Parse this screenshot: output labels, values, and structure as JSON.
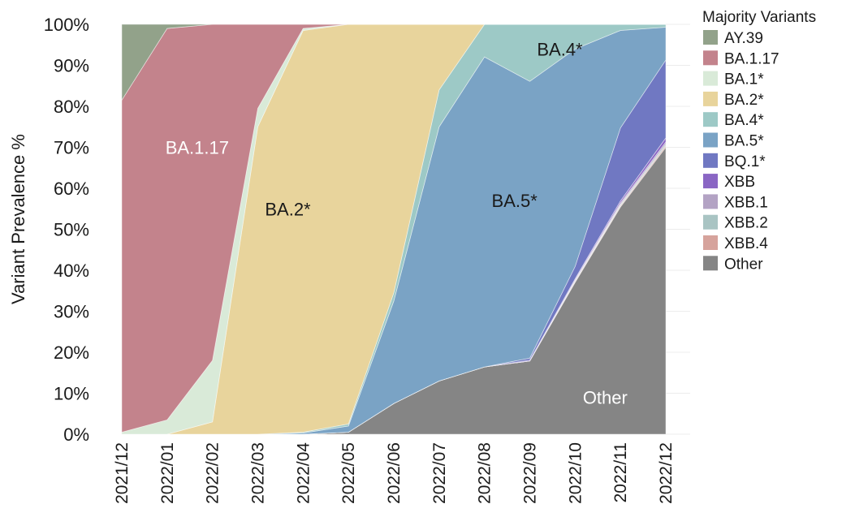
{
  "chart_data": {
    "type": "area",
    "stacked": true,
    "normalized": true,
    "ylabel": "Variant Prevalence %",
    "xlabel": "",
    "ylim": [
      0,
      100
    ],
    "y_ticks": [
      {
        "value": 100,
        "label": "100%"
      },
      {
        "value": 90,
        "label": "90%"
      },
      {
        "value": 80,
        "label": "80%"
      },
      {
        "value": 70,
        "label": "70%"
      },
      {
        "value": 60,
        "label": "60%"
      },
      {
        "value": 50,
        "label": "50%"
      },
      {
        "value": 40,
        "label": "40%"
      },
      {
        "value": 30,
        "label": "30%"
      },
      {
        "value": 20,
        "label": "20%"
      },
      {
        "value": 10,
        "label": "10%"
      },
      {
        "value": 0,
        "label": "0%"
      }
    ],
    "grid": true,
    "legend_title": "Majority Variants",
    "legend_position": "right",
    "categories": [
      "2021/12",
      "2022/01",
      "2022/02",
      "2022/03",
      "2022/04",
      "2022/05",
      "2022/06",
      "2022/07",
      "2022/08",
      "2022/09",
      "2022/10",
      "2022/11",
      "2022/12"
    ],
    "series": [
      {
        "name": "Other",
        "color": "#858585",
        "values": [
          0,
          0,
          0,
          0,
          0,
          0.5,
          7.5,
          13,
          16.5,
          18,
          37,
          56,
          70
        ]
      },
      {
        "name": "XBB.4",
        "color": "#d6a39c",
        "values": [
          0,
          0,
          0,
          0,
          0,
          0,
          0,
          0,
          0,
          0,
          0.2,
          0.3,
          0.4
        ]
      },
      {
        "name": "XBB.2",
        "color": "#a9c4c3",
        "values": [
          0,
          0,
          0,
          0,
          0,
          0,
          0,
          0,
          0,
          0,
          0.2,
          0.3,
          0.4
        ]
      },
      {
        "name": "XBB.1",
        "color": "#b3a3c4",
        "values": [
          0,
          0,
          0,
          0,
          0,
          0,
          0,
          0,
          0,
          0,
          0.2,
          0.4,
          0.5
        ]
      },
      {
        "name": "XBB",
        "color": "#8a66c4",
        "values": [
          0,
          0,
          0,
          0,
          0,
          0,
          0,
          0,
          0,
          0.2,
          0.3,
          0.5,
          1
        ]
      },
      {
        "name": "BQ.1*",
        "color": "#7078c2",
        "values": [
          0,
          0,
          0,
          0,
          0,
          0,
          0,
          0,
          0,
          0.5,
          3,
          18,
          19
        ]
      },
      {
        "name": "BA.5*",
        "color": "#7aa3c5",
        "values": [
          0,
          0,
          0,
          0,
          0.3,
          1.5,
          25,
          62,
          76,
          68,
          53,
          24,
          8
        ]
      },
      {
        "name": "BA.4*",
        "color": "#9dc9c6",
        "values": [
          0,
          0,
          0,
          0,
          0.2,
          0.5,
          2,
          9,
          8,
          14,
          6,
          1.5,
          0.7
        ]
      },
      {
        "name": "BA.2*",
        "color": "#e8d49c",
        "values": [
          0,
          0,
          3,
          75,
          98,
          97.5,
          65.5,
          16,
          0,
          0,
          0,
          0,
          0
        ]
      },
      {
        "name": "BA.1*",
        "color": "#d9ead8",
        "values": [
          0.5,
          3.5,
          15,
          4.5,
          0.5,
          0,
          0,
          0,
          0,
          0,
          0,
          0,
          0
        ]
      },
      {
        "name": "BA.1.17",
        "color": "#c3838c",
        "values": [
          81,
          95.5,
          82,
          20.5,
          1,
          0,
          0,
          0,
          0,
          0,
          0,
          0,
          0
        ]
      },
      {
        "name": "AY.39",
        "color": "#92a28a",
        "values": [
          18.5,
          1,
          0,
          0,
          0,
          0,
          0,
          0,
          0,
          0,
          0,
          0,
          0
        ]
      }
    ],
    "legend_entries": [
      {
        "name": "AY.39",
        "color": "#92a28a"
      },
      {
        "name": "BA.1.17",
        "color": "#c3838c"
      },
      {
        "name": "BA.1*",
        "color": "#d9ead8"
      },
      {
        "name": "BA.2*",
        "color": "#e8d49c"
      },
      {
        "name": "BA.4*",
        "color": "#9dc9c6"
      },
      {
        "name": "BA.5*",
        "color": "#7aa3c5"
      },
      {
        "name": "BQ.1*",
        "color": "#7078c2"
      },
      {
        "name": "XBB",
        "color": "#8a66c4"
      },
      {
        "name": "XBB.1",
        "color": "#b3a3c4"
      },
      {
        "name": "XBB.2",
        "color": "#a9c4c3"
      },
      {
        "name": "XBB.4",
        "color": "#d6a39c"
      },
      {
        "name": "Other",
        "color": "#858585"
      }
    ],
    "annotations": [
      {
        "text": "BA.1.17",
        "x": "2022/01",
        "y": 70,
        "color": "#ffffff"
      },
      {
        "text": "BA.2*",
        "x": "2022/03",
        "y": 55,
        "color": "#1a1a1a"
      },
      {
        "text": "BA.5*",
        "x": "2022/08",
        "y": 57,
        "color": "#1a1a1a"
      },
      {
        "text": "BA.4*",
        "x": "2022/09",
        "y": 94,
        "color": "#1a1a1a"
      },
      {
        "text": "Other",
        "x": "2022/10",
        "y": 9,
        "color": "#ffffff"
      }
    ]
  }
}
